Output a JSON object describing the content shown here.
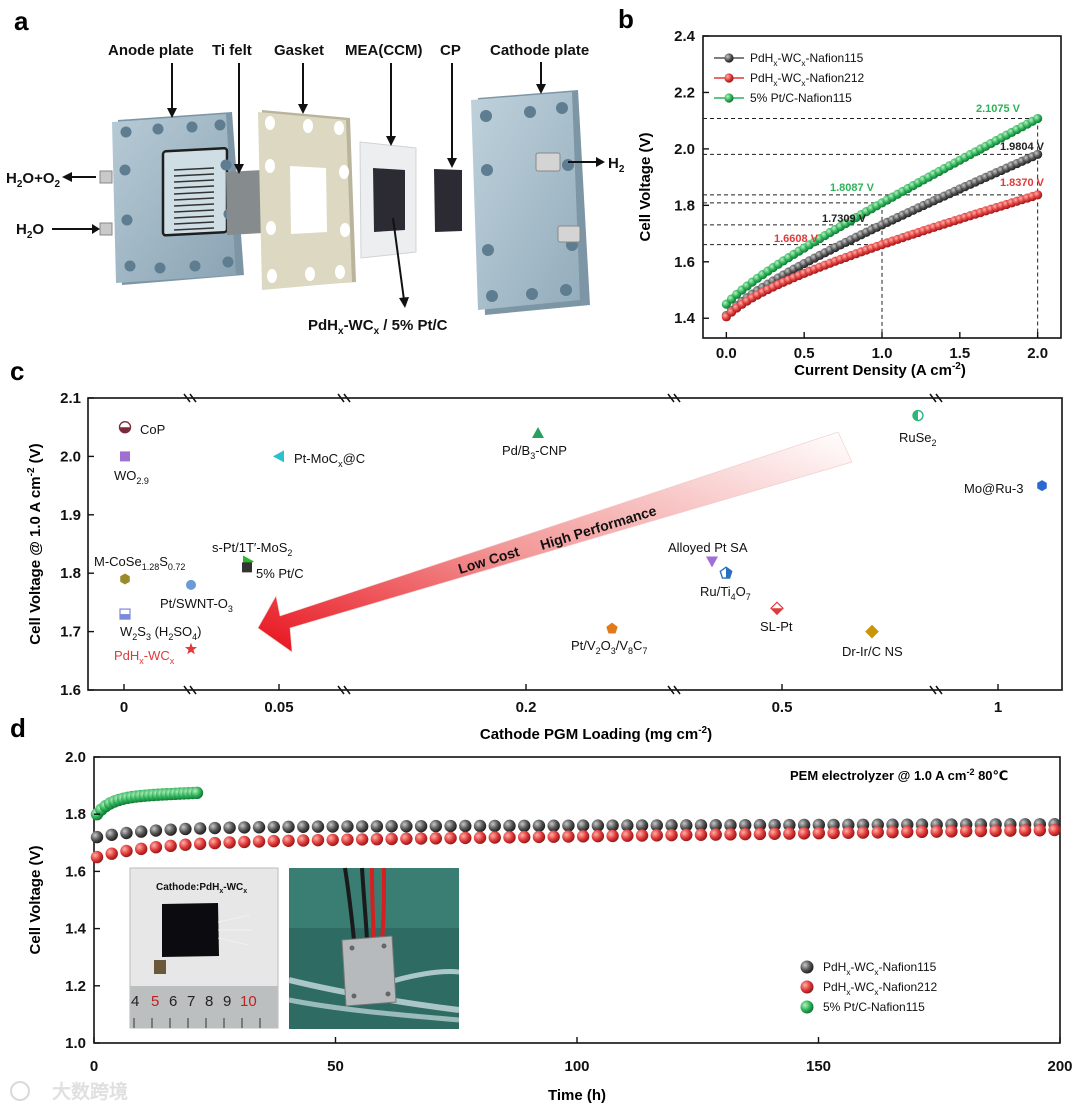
{
  "panels": {
    "a": "a",
    "b": "b",
    "c": "c",
    "d": "d"
  },
  "panel_a": {
    "labels": {
      "anode": "Anode plate",
      "tifelt": "Ti felt",
      "gasket": "Gasket",
      "mea": "MEA(CCM)",
      "cp": "CP",
      "cathode": "Cathode plate",
      "h2": "H",
      "h2_sub": "2",
      "h2o_o2_a": "H",
      "h2o_o2_b": "2",
      "h2o_o2_c": "O+O",
      "h2o_o2_d": "2",
      "h2o_a": "H",
      "h2o_b": "2",
      "h2o_c": "O",
      "catalyst_a": "PdH",
      "catalyst_b": "x",
      "catalyst_c": "-WC",
      "catalyst_d": "x",
      "catalyst_e": " / 5% Pt/C"
    },
    "colors": {
      "plate": "#9fb6c4",
      "gasket": "#d8d4bd",
      "felt": "#888b8c",
      "mea": "#e8eaec",
      "dark": "#2c2a33"
    }
  },
  "chart_data": [
    {
      "id": "b",
      "type": "line",
      "xlabel": "Current Density (A cm",
      "xlabel_sup": "-2",
      "xlabel_end": ")",
      "ylabel": "Cell Voltage (V)",
      "xlim": [
        -0.15,
        2.15
      ],
      "ylim": [
        1.33,
        2.4
      ],
      "xticks": [
        "0.0",
        "0.5",
        "1.0",
        "1.5",
        "2.0"
      ],
      "xtick_values": [
        0,
        0.5,
        1.0,
        1.5,
        2.0
      ],
      "yticks": [
        "1.4",
        "1.6",
        "1.8",
        "2.0",
        "2.2",
        "2.4"
      ],
      "ytick_values": [
        1.4,
        1.6,
        1.8,
        2.0,
        2.2,
        2.4
      ],
      "legend": [
        {
          "a": "PdH",
          "b": "x",
          "c": "-WC",
          "d": "x",
          "e": "-Nafion115",
          "color": "#555555"
        },
        {
          "a": "PdH",
          "b": "x",
          "c": "-WC",
          "d": "x",
          "e": "-Nafion212",
          "color": "#e03a3a"
        },
        {
          "a": "5% Pt/C-Nafion115",
          "b": "",
          "c": "",
          "d": "",
          "e": "",
          "color": "#2db35a"
        }
      ],
      "series": [
        {
          "name": "PdHx-WCx-Nafion115",
          "color": "#555555",
          "v0": 1.41,
          "v1": 1.7309,
          "v2": 1.9804
        },
        {
          "name": "PdHx-WCx-Nafion212",
          "color": "#e03a3a",
          "v0": 1.405,
          "v1": 1.6608,
          "v2": 1.837
        },
        {
          "name": "5% Pt/C-Nafion115",
          "color": "#2db35a",
          "v0": 1.45,
          "v1": 1.8087,
          "v2": 2.1075
        }
      ],
      "annotations": [
        {
          "text": "2.1075 V",
          "value": 2.1075,
          "color": "#2db35a"
        },
        {
          "text": "1.9804 V",
          "value": 1.9804,
          "color": "#222222"
        },
        {
          "text": "1.8370 V",
          "value": 1.837,
          "color": "#e03a3a"
        },
        {
          "text": "1.8087 V",
          "value": 1.8087,
          "color": "#2db35a"
        },
        {
          "text": "1.7309 V",
          "value": 1.7309,
          "color": "#222222"
        },
        {
          "text": "1.6608 V",
          "value": 1.6608,
          "color": "#e03a3a"
        }
      ]
    },
    {
      "id": "c",
      "type": "scatter",
      "xlabel": "Cathode PGM Loading (mg cm",
      "xlabel_sup": "-2",
      "xlabel_end": ")",
      "ylabel": "Cell Voltage @ 1.0 A cm",
      "ylabel_sup": "-2",
      "ylabel_end": " (V)",
      "ylim": [
        1.6,
        2.1
      ],
      "xtick_labels": [
        "0",
        "0.05",
        "0.2",
        "0.5",
        "1"
      ],
      "xtick_values": [
        0,
        0.05,
        0.2,
        0.5,
        1
      ],
      "yticks": [
        "1.6",
        "1.7",
        "1.8",
        "1.9",
        "2.0",
        "2.1"
      ],
      "ytick_values": [
        1.6,
        1.7,
        1.8,
        1.9,
        2.0,
        2.1
      ],
      "arrow_text_a": "Low Cost",
      "arrow_text_b": "High Performance",
      "points": [
        {
          "label": "CoP",
          "x": 0,
          "y": 2.05,
          "color": "#7a2a3a",
          "shape": "halfcircle"
        },
        {
          "label": "WO2.9",
          "x": 0,
          "y": 2.0,
          "color": "#a070d0",
          "shape": "square"
        },
        {
          "label": "M-CoSe1.28S0.72",
          "x": 0,
          "y": 1.79,
          "color": "#9a8a2a",
          "shape": "hexagon"
        },
        {
          "label": "W2S3 (H2SO4)",
          "x": 0,
          "y": 1.73,
          "color": "#7a8ad8",
          "shape": "halfsquare"
        },
        {
          "label": "PdHx-WCx",
          "x": 0.0117,
          "y": 1.67,
          "color": "#e03a3a",
          "shape": "star"
        },
        {
          "label": "Pt/SWNT-O3",
          "x": 0.0117,
          "y": 1.78,
          "color": "#6a9ad8",
          "shape": "circle"
        },
        {
          "label": "Pt-MoCx@C",
          "x": 0.052,
          "y": 2.0,
          "color": "#2ac0d0",
          "shape": "triangle-left"
        },
        {
          "label": "s-Pt/1T'-MoS2",
          "x": 0.04,
          "y": 1.82,
          "color": "#2ab82a",
          "shape": "triangle-right"
        },
        {
          "label": "5% Pt/C",
          "x": 0.04,
          "y": 1.81,
          "color": "#333333",
          "shape": "square"
        },
        {
          "label": "Pd/B3-CNP",
          "x": 0.2,
          "y": 2.04,
          "color": "#2aa060",
          "shape": "triangle-up"
        },
        {
          "label": "Pt/V2O3/V8C7",
          "x": 0.25,
          "y": 1.705,
          "color": "#e07a1a",
          "shape": "pentagon"
        },
        {
          "label": "Alloyed Pt SA",
          "x": 0.4,
          "y": 1.82,
          "color": "#a070d8",
          "shape": "triangle-down"
        },
        {
          "label": "Ru/Ti4O7",
          "x": 0.41,
          "y": 1.8,
          "color": "#2a70c0",
          "shape": "pentagon-half"
        },
        {
          "label": "SL-Pt",
          "x": 0.5,
          "y": 1.74,
          "color": "#e03a3a",
          "shape": "diamond"
        },
        {
          "label": "Dr-Ir/C NS",
          "x": 0.7,
          "y": 1.7,
          "color": "#c8960a",
          "shape": "diamond"
        },
        {
          "label": "RuSe2",
          "x": 0.8,
          "y": 2.07,
          "color": "#2ab87a",
          "shape": "halfcircle-v"
        },
        {
          "label": "Mo@Ru-3",
          "x": 1.1,
          "y": 1.95,
          "color": "#2a6ad0",
          "shape": "hexagon"
        }
      ],
      "text_labels": {
        "cop": "CoP",
        "wo_a": "WO",
        "wo_b": "2.9",
        "mcose_a": "M-CoSe",
        "mcose_b": "1.28",
        "mcose_c": "S",
        "mcose_d": "0.72",
        "w2s3_a": "W",
        "w2s3_b": "2",
        "w2s3_c": "S",
        "w2s3_d": "3",
        "w2s3_e": " (H",
        "w2s3_f": "2",
        "w2s3_g": "SO",
        "w2s3_h": "4",
        "w2s3_i": ")",
        "pdh_a": "PdH",
        "pdh_b": "x",
        "pdh_c": "-WC",
        "pdh_d": "x",
        "ptswnt_a": "Pt/SWNT-O",
        "ptswnt_b": "3",
        "ptmoc_a": "Pt-MoC",
        "ptmoc_b": "x",
        "ptmoc_c": "@C",
        "sptmos_a": "s-Pt/1T′-MoS",
        "sptmos_b": "2",
        "ptc": "5% Pt/C",
        "pdb_a": "Pd/B",
        "pdb_b": "3",
        "pdb_c": "-CNP",
        "ptv_a": "Pt/V",
        "ptv_b": "2",
        "ptv_c": "O",
        "ptv_d": "3",
        "ptv_e": "/V",
        "ptv_f": "8",
        "ptv_g": "C",
        "ptv_h": "7",
        "alloy": "Alloyed Pt SA",
        "ruti_a": "Ru/Ti",
        "ruti_b": "4",
        "ruti_c": "O",
        "ruti_d": "7",
        "slpt": "SL-Pt",
        "drir": "Dr-Ir/C NS",
        "ruse_a": "RuSe",
        "ruse_b": "2",
        "moru": "Mo@Ru-3"
      }
    },
    {
      "id": "d",
      "type": "line",
      "title": "PEM electrolyzer @ 1.0 A cm",
      "title_sup": "-2",
      "title_end": " 80℃",
      "xlabel": "Time (h)",
      "ylabel": "Cell Voltage (V)",
      "xlim": [
        0,
        200
      ],
      "ylim": [
        1.0,
        2.0
      ],
      "xticks": [
        "0",
        "50",
        "100",
        "150",
        "200"
      ],
      "xtick_values": [
        0,
        50,
        100,
        150,
        200
      ],
      "yticks": [
        "1.0",
        "1.2",
        "1.4",
        "1.6",
        "1.8",
        "2.0"
      ],
      "ytick_values": [
        1.0,
        1.2,
        1.4,
        1.6,
        1.8,
        2.0
      ],
      "series": [
        {
          "name": "PdHx-WCx-Nafion115",
          "color": "#4a4a4a",
          "start": 1.72,
          "plateau": 1.755,
          "end": 1.765,
          "x_end": 200
        },
        {
          "name": "PdHx-WCx-Nafion212",
          "color": "#e03a3a",
          "start": 1.65,
          "plateau": 1.7,
          "end": 1.745,
          "x_end": 200
        },
        {
          "name": "5% Pt/C-Nafion115",
          "color": "#2db35a",
          "start": 1.8,
          "plateau": 1.86,
          "end": 1.875,
          "x_end": 21
        }
      ],
      "legend": [
        {
          "a": "PdH",
          "b": "x",
          "c": "-WC",
          "d": "x",
          "e": "-Nafion115",
          "color": "#4a4a4a"
        },
        {
          "a": "PdH",
          "b": "x",
          "c": "-WC",
          "d": "x",
          "e": "-Nafion212",
          "color": "#e03a3a"
        },
        {
          "a": "5% Pt/C-Nafion115",
          "b": "",
          "c": "",
          "d": "",
          "e": "",
          "color": "#2db35a"
        }
      ],
      "inset": {
        "label_a": "Cathode:PdH",
        "label_b": "x",
        "label_c": "-WC",
        "label_d": "x",
        "ruler": [
          "4",
          "5",
          "6",
          "7",
          "8",
          "9",
          "10"
        ]
      }
    }
  ],
  "watermark": "大数跨境"
}
